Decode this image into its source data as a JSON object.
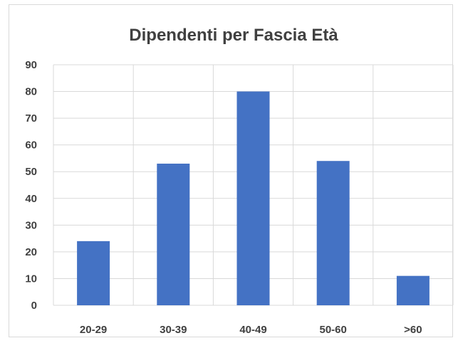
{
  "chart_data": {
    "type": "bar",
    "title": "Dipendenti per Fascia Età",
    "xlabel": "",
    "ylabel": "",
    "categories": [
      "20-29",
      "30-39",
      "40-49",
      "50-60",
      ">60"
    ],
    "values": [
      24,
      53,
      80,
      54,
      11
    ],
    "ylim": [
      0,
      90
    ],
    "yticks": [
      "0",
      "10",
      "20",
      "30",
      "40",
      "50",
      "60",
      "70",
      "80",
      "90"
    ],
    "grid": true,
    "bar_color": "#4472c4",
    "grid_color": "#d9d9d9",
    "text_color": "#404040"
  }
}
